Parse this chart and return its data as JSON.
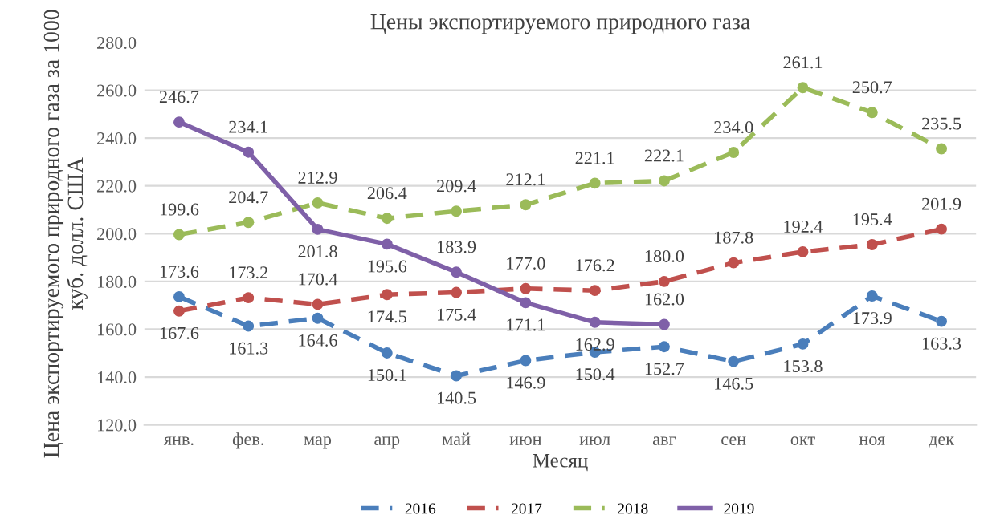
{
  "chart_data": {
    "type": "line",
    "title": "Цены экспортируемого природного газа",
    "xlabel": "Месяц",
    "ylabel": "Цена экспортируемого природного газа за 1000 куб. долл. США",
    "categories": [
      "янв.",
      "фев.",
      "мар",
      "апр",
      "май",
      "июн",
      "июл",
      "авг",
      "сен",
      "окт",
      "ноя",
      "дек"
    ],
    "series": [
      {
        "name": "2016",
        "color": "#4a7ebb",
        "line_style": "dashed",
        "values": [
          173.6,
          161.3,
          164.6,
          150.1,
          140.5,
          146.9,
          150.4,
          152.7,
          146.5,
          153.8,
          173.9,
          163.3
        ],
        "value_labels": [
          "173.6",
          "161.3",
          "164.6",
          "150.1",
          "140.5",
          "146.9",
          "150.4",
          "152.7",
          "146.5",
          "153.8",
          "173.9",
          "163.3"
        ]
      },
      {
        "name": "2017",
        "color": "#c0504d",
        "line_style": "dashed",
        "values": [
          167.6,
          173.2,
          170.4,
          174.5,
          175.4,
          177.0,
          176.2,
          180.0,
          187.8,
          192.4,
          195.4,
          201.9
        ],
        "value_labels": [
          "167.6",
          "173.2",
          "170.4",
          "174.5",
          "175.4",
          "177.0",
          "176.2",
          "180.0",
          "187.8",
          "192.4",
          "195.4",
          "201.9"
        ]
      },
      {
        "name": "2018",
        "color": "#9bbb59",
        "line_style": "dashed",
        "values": [
          199.6,
          204.7,
          212.9,
          206.4,
          209.4,
          212.1,
          221.1,
          222.1,
          234.0,
          261.1,
          250.7,
          235.5
        ],
        "value_labels": [
          "199.6",
          "204.7",
          "212.9",
          "206.4",
          "209.4",
          "212.1",
          "221.1",
          "222.1",
          "234.0",
          "261.1",
          "250.7",
          "235.5"
        ]
      },
      {
        "name": "2019",
        "color": "#7f60a8",
        "line_style": "solid",
        "values": [
          246.7,
          234.1,
          201.8,
          195.6,
          183.9,
          171.1,
          162.9,
          162.0,
          null,
          null,
          null,
          null
        ],
        "value_labels": [
          "246.7",
          "234.1",
          "201.8",
          "195.6",
          "183.9",
          "171.1",
          "162.9",
          "162.0",
          null,
          null,
          null,
          null
        ]
      }
    ],
    "ylim": [
      120,
      280
    ],
    "yticks": [
      {
        "value": 120,
        "label": "120.0"
      },
      {
        "value": 140,
        "label": "140.0"
      },
      {
        "value": 160,
        "label": "160.0"
      },
      {
        "value": 180,
        "label": "180.0"
      },
      {
        "value": 200,
        "label": "200.0"
      },
      {
        "value": 220,
        "label": "220.0"
      },
      {
        "value": 240,
        "label": "240.0"
      },
      {
        "value": 260,
        "label": "260.0"
      },
      {
        "value": 280,
        "label": "280.0"
      }
    ],
    "grid": "y",
    "legend": "bottom",
    "marker": "circle"
  }
}
